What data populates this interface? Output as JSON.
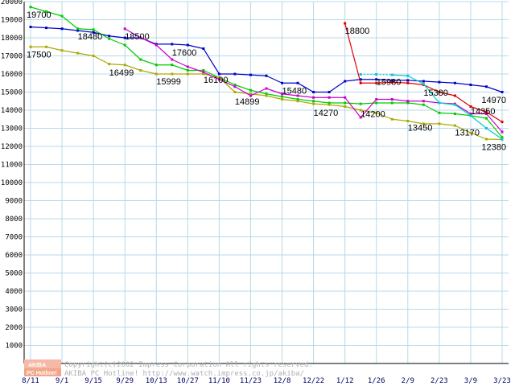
{
  "chart_data": {
    "type": "line",
    "xlabel": "",
    "ylabel": "",
    "ylim": [
      0,
      20000
    ],
    "yticks": [
      1000,
      2000,
      3000,
      4000,
      5000,
      6000,
      7000,
      8000,
      9000,
      10000,
      11000,
      12000,
      13000,
      14000,
      15000,
      16000,
      17000,
      18000,
      19000,
      20000
    ],
    "grid": true,
    "legend": "none",
    "x_ticks": [
      "8/11",
      "9/1",
      "9/15",
      "9/29",
      "10/13",
      "10/27",
      "11/10",
      "11/23",
      "12/8",
      "12/22",
      "1/12",
      "1/26",
      "2/9",
      "2/23",
      "3/9",
      "3/23"
    ],
    "x_slots": 30,
    "series": [
      {
        "color": "#0000cc",
        "points": [
          [
            0,
            18600
          ],
          [
            1,
            18550
          ],
          [
            2,
            18500
          ],
          [
            3,
            18400
          ],
          [
            4,
            18300
          ],
          [
            5,
            18100
          ],
          [
            6,
            18000
          ],
          [
            7,
            18000
          ],
          [
            8,
            17650
          ],
          [
            9,
            17650
          ],
          [
            10,
            17600
          ],
          [
            11,
            17400
          ],
          [
            12,
            16000
          ],
          [
            13,
            16000
          ],
          [
            14,
            15950
          ],
          [
            15,
            15900
          ],
          [
            16,
            15500
          ],
          [
            17,
            15500
          ],
          [
            18,
            15000
          ],
          [
            19,
            15000
          ],
          [
            20,
            15600
          ],
          [
            21,
            15700
          ],
          [
            22,
            15700
          ],
          [
            23,
            15650
          ],
          [
            24,
            15650
          ],
          [
            25,
            15600
          ],
          [
            26,
            15550
          ],
          [
            27,
            15500
          ],
          [
            28,
            15400
          ],
          [
            29,
            15300
          ],
          [
            30,
            15000
          ]
        ]
      },
      {
        "color": "#00cc00",
        "points": [
          [
            0,
            19700
          ],
          [
            1,
            19450
          ],
          [
            2,
            19200
          ],
          [
            3,
            18500
          ],
          [
            4,
            18450
          ],
          [
            5,
            17950
          ],
          [
            6,
            17600
          ],
          [
            7,
            16800
          ],
          [
            8,
            16500
          ],
          [
            9,
            16500
          ],
          [
            10,
            16200
          ],
          [
            11,
            16200
          ],
          [
            12,
            15800
          ],
          [
            13,
            15400
          ],
          [
            14,
            15100
          ],
          [
            15,
            14900
          ],
          [
            16,
            14750
          ],
          [
            17,
            14600
          ],
          [
            18,
            14500
          ],
          [
            19,
            14400
          ],
          [
            20,
            14400
          ],
          [
            21,
            14350
          ],
          [
            22,
            14400
          ],
          [
            23,
            14400
          ],
          [
            24,
            14400
          ],
          [
            25,
            14300
          ],
          [
            26,
            13850
          ],
          [
            27,
            13800
          ],
          [
            28,
            13700
          ],
          [
            29,
            13550
          ],
          [
            30,
            12500
          ]
        ]
      },
      {
        "color": "#aaaa00",
        "points": [
          [
            0,
            17500
          ],
          [
            1,
            17500
          ],
          [
            2,
            17300
          ],
          [
            3,
            17150
          ],
          [
            4,
            17000
          ],
          [
            5,
            16550
          ],
          [
            6,
            16500
          ],
          [
            7,
            16200
          ],
          [
            8,
            16000
          ],
          [
            9,
            16000
          ],
          [
            10,
            16000
          ],
          [
            11,
            16000
          ],
          [
            12,
            15800
          ],
          [
            13,
            15000
          ],
          [
            14,
            14900
          ],
          [
            15,
            14800
          ],
          [
            16,
            14600
          ],
          [
            17,
            14500
          ],
          [
            18,
            14350
          ],
          [
            19,
            14300
          ],
          [
            20,
            14200
          ],
          [
            21,
            14000
          ],
          [
            22,
            13850
          ],
          [
            23,
            13500
          ],
          [
            24,
            13400
          ],
          [
            25,
            13250
          ],
          [
            26,
            13250
          ],
          [
            27,
            13150
          ],
          [
            28,
            12750
          ],
          [
            29,
            12400
          ],
          [
            30,
            12380
          ]
        ]
      },
      {
        "color": "#cc00cc",
        "points": [
          [
            6,
            18500
          ],
          [
            7,
            18000
          ],
          [
            8,
            17600
          ],
          [
            9,
            16800
          ],
          [
            10,
            16400
          ],
          [
            11,
            16100
          ],
          [
            12,
            15700
          ],
          [
            13,
            15300
          ],
          [
            14,
            14800
          ],
          [
            15,
            15200
          ],
          [
            16,
            14900
          ],
          [
            17,
            14800
          ],
          [
            18,
            14700
          ],
          [
            19,
            14700
          ],
          [
            20,
            14700
          ],
          [
            21,
            13600
          ],
          [
            22,
            14600
          ],
          [
            23,
            14600
          ],
          [
            24,
            14500
          ],
          [
            25,
            14500
          ],
          [
            26,
            14400
          ],
          [
            27,
            14350
          ],
          [
            28,
            13800
          ],
          [
            29,
            13800
          ],
          [
            30,
            12800
          ]
        ]
      },
      {
        "color": "#dd0000",
        "points": [
          [
            20,
            18800
          ],
          [
            21,
            15500
          ],
          [
            22,
            15500
          ],
          [
            23,
            15550
          ],
          [
            24,
            15500
          ],
          [
            25,
            15400
          ],
          [
            26,
            15000
          ],
          [
            27,
            14800
          ],
          [
            28,
            14200
          ],
          [
            29,
            13900
          ],
          [
            30,
            13350
          ]
        ]
      },
      {
        "color": "#00cccc",
        "dashed_segment": [
          21,
          23
        ],
        "points": [
          [
            21,
            15980
          ],
          [
            22,
            15980
          ],
          [
            23,
            15950
          ],
          [
            24,
            15900
          ],
          [
            25,
            15450
          ],
          [
            26,
            14400
          ],
          [
            27,
            14300
          ],
          [
            28,
            13700
          ],
          [
            29,
            13000
          ],
          [
            30,
            12400
          ]
        ]
      }
    ],
    "annotations": [
      {
        "text": "19700",
        "x": 0,
        "y": 19700
      },
      {
        "text": "18480",
        "x": 3,
        "y": 18480
      },
      {
        "text": "18500",
        "x": 6,
        "y": 18500
      },
      {
        "text": "17500",
        "x": 0,
        "y": 17500
      },
      {
        "text": "17600",
        "x": 9,
        "y": 17600
      },
      {
        "text": "16499",
        "x": 5,
        "y": 16499
      },
      {
        "text": "15999",
        "x": 8,
        "y": 15999
      },
      {
        "text": "16100",
        "x": 11,
        "y": 16100
      },
      {
        "text": "14899",
        "x": 13,
        "y": 14899
      },
      {
        "text": "15480",
        "x": 16,
        "y": 15480
      },
      {
        "text": "14270",
        "x": 18,
        "y": 14270
      },
      {
        "text": "18800",
        "x": 20,
        "y": 18800
      },
      {
        "text": "15980",
        "x": 22,
        "y": 15980
      },
      {
        "text": "15380",
        "x": 25,
        "y": 15380
      },
      {
        "text": "14200",
        "x": 21,
        "y": 14200
      },
      {
        "text": "13450",
        "x": 24,
        "y": 13450
      },
      {
        "text": "14350",
        "x": 28,
        "y": 14350
      },
      {
        "text": "13170",
        "x": 27,
        "y": 13170
      },
      {
        "text": "14970",
        "x": 30,
        "y": 14970
      },
      {
        "text": "12380",
        "x": 30,
        "y": 12380
      }
    ]
  },
  "footer": {
    "logo_top": "AKIBA",
    "logo_bottom": "PC Hotline!",
    "copyright_line1": "Copyright(c)2002 Impress Corporation All rights reserved.",
    "copyright_line2": "AKIBA PC Hotline! http://www.watch.impress.co.jp/akiba/"
  },
  "colors": {
    "grid": "#b8d8e8",
    "axis": "#000000",
    "tick_text": "#000066"
  }
}
